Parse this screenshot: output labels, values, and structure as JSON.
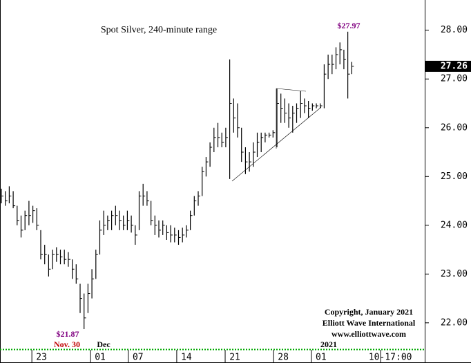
{
  "chart_data": {
    "type": "ohlc",
    "title": "Spot Silver, 240-minute range",
    "x": [
      0,
      1,
      2,
      3,
      4,
      5,
      6,
      7,
      8,
      9,
      10,
      11,
      12,
      13,
      14,
      15,
      16,
      17,
      18,
      19,
      20,
      21,
      22,
      23,
      24,
      25,
      26,
      27,
      28,
      29,
      30,
      31,
      32,
      33,
      34,
      35,
      36,
      37,
      38,
      39,
      40,
      41,
      42,
      43,
      44,
      45,
      46,
      47,
      48,
      49,
      50,
      51,
      52,
      53,
      54,
      55,
      56,
      57,
      58,
      59,
      60,
      61,
      62,
      63,
      64,
      65,
      66,
      67,
      68,
      69,
      70,
      71,
      72,
      73,
      74,
      75,
      76,
      77,
      78,
      79,
      80,
      81,
      82,
      83,
      84,
      85,
      86,
      87,
      88,
      89
    ],
    "high": [
      24.75,
      24.7,
      24.8,
      24.7,
      24.4,
      24.2,
      24.3,
      24.5,
      24.4,
      24.35,
      23.9,
      23.6,
      23.4,
      23.5,
      23.55,
      23.5,
      23.5,
      23.45,
      23.3,
      23.2,
      22.8,
      22.6,
      22.8,
      23.1,
      23.5,
      24.1,
      24.3,
      24.2,
      24.3,
      24.4,
      24.3,
      24.2,
      24.3,
      24.2,
      24.0,
      24.7,
      24.85,
      24.7,
      24.5,
      24.2,
      24.1,
      24.1,
      24.0,
      24.0,
      23.95,
      23.9,
      23.95,
      24.0,
      24.3,
      24.6,
      24.7,
      25.2,
      25.4,
      25.7,
      26.0,
      26.1,
      25.9,
      26.0,
      27.4,
      26.6,
      26.5,
      26.0,
      25.6,
      25.5,
      25.7,
      25.9,
      25.9,
      25.9,
      25.9,
      25.95,
      26.8,
      26.7,
      26.6,
      26.5,
      26.45,
      26.5,
      26.75,
      26.6,
      26.55,
      26.5,
      26.5,
      26.5,
      27.3,
      27.5,
      27.5,
      27.65,
      27.75,
      27.6,
      27.97,
      27.35
    ],
    "low": [
      24.45,
      24.4,
      24.45,
      24.35,
      24.0,
      23.75,
      23.9,
      24.0,
      24.05,
      23.9,
      23.3,
      23.2,
      22.95,
      23.1,
      23.25,
      23.2,
      23.2,
      23.15,
      22.9,
      22.8,
      22.2,
      21.87,
      22.2,
      22.5,
      22.9,
      23.4,
      23.8,
      23.9,
      23.9,
      24.0,
      23.9,
      23.9,
      23.9,
      23.85,
      23.6,
      23.9,
      24.4,
      24.4,
      24.0,
      23.8,
      23.75,
      23.8,
      23.7,
      23.65,
      23.65,
      23.6,
      23.65,
      23.75,
      23.9,
      24.2,
      24.4,
      24.6,
      25.0,
      25.2,
      25.5,
      25.6,
      25.6,
      25.6,
      24.95,
      25.9,
      25.8,
      25.3,
      25.05,
      25.1,
      25.2,
      25.4,
      25.5,
      25.7,
      25.8,
      25.8,
      25.6,
      26.1,
      26.1,
      26.0,
      25.9,
      26.1,
      26.2,
      26.3,
      26.2,
      26.35,
      26.4,
      26.4,
      26.4,
      27.0,
      27.1,
      27.2,
      27.3,
      27.2,
      26.6,
      27.1
    ],
    "close": [
      24.6,
      24.5,
      24.6,
      24.4,
      24.1,
      23.9,
      24.2,
      24.2,
      24.3,
      24.0,
      23.4,
      23.4,
      23.1,
      23.4,
      23.4,
      23.35,
      23.3,
      23.3,
      23.1,
      22.9,
      22.5,
      22.1,
      22.6,
      22.9,
      23.4,
      23.9,
      24.0,
      24.1,
      24.2,
      24.2,
      24.1,
      24.0,
      24.1,
      24.0,
      23.8,
      24.6,
      24.6,
      24.5,
      24.1,
      24.0,
      23.9,
      24.0,
      23.85,
      23.8,
      23.8,
      23.75,
      23.8,
      23.9,
      24.2,
      24.5,
      24.6,
      25.1,
      25.3,
      25.6,
      25.8,
      25.8,
      25.7,
      25.8,
      26.5,
      26.2,
      26.0,
      25.5,
      25.3,
      25.3,
      25.5,
      25.7,
      25.8,
      25.85,
      25.85,
      25.9,
      26.5,
      26.4,
      26.3,
      26.2,
      26.3,
      26.4,
      26.5,
      26.45,
      26.4,
      26.45,
      26.45,
      26.45,
      27.1,
      27.3,
      27.3,
      27.5,
      27.6,
      27.4,
      27.1,
      27.26
    ],
    "color": "#000000",
    "ylim": [
      21.53,
      28.62
    ],
    "yticks": [
      {
        "value": 22,
        "label": "22.00"
      },
      {
        "value": 23,
        "label": "23.00"
      },
      {
        "value": 24,
        "label": "24.00"
      },
      {
        "value": 25,
        "label": "25.00"
      },
      {
        "value": 26,
        "label": "26.00"
      },
      {
        "value": 27,
        "label": "27.00"
      },
      {
        "value": 28,
        "label": "28.00"
      }
    ],
    "xlim": [
      -0.35,
      107.54
    ],
    "xticks": [
      {
        "value": 10.2,
        "label": "23"
      },
      {
        "value": 25.1,
        "label": "01"
      },
      {
        "value": 34.7,
        "label": "07"
      },
      {
        "value": 47,
        "label": "14"
      },
      {
        "value": 59.3,
        "label": "21"
      },
      {
        "value": 71.6,
        "label": "28"
      },
      {
        "value": 81.2,
        "label": "01"
      },
      {
        "value": 98.8,
        "label": "10-17:00"
      }
    ],
    "last_price": {
      "value": 27.26,
      "label": "27.26"
    },
    "annotations": [
      "$27.97",
      "$21.87",
      "Nov. 30",
      "Dec",
      "2021",
      "Copyright, January 2021",
      "Elliott Wave International",
      "www.elliottwave.com"
    ]
  }
}
